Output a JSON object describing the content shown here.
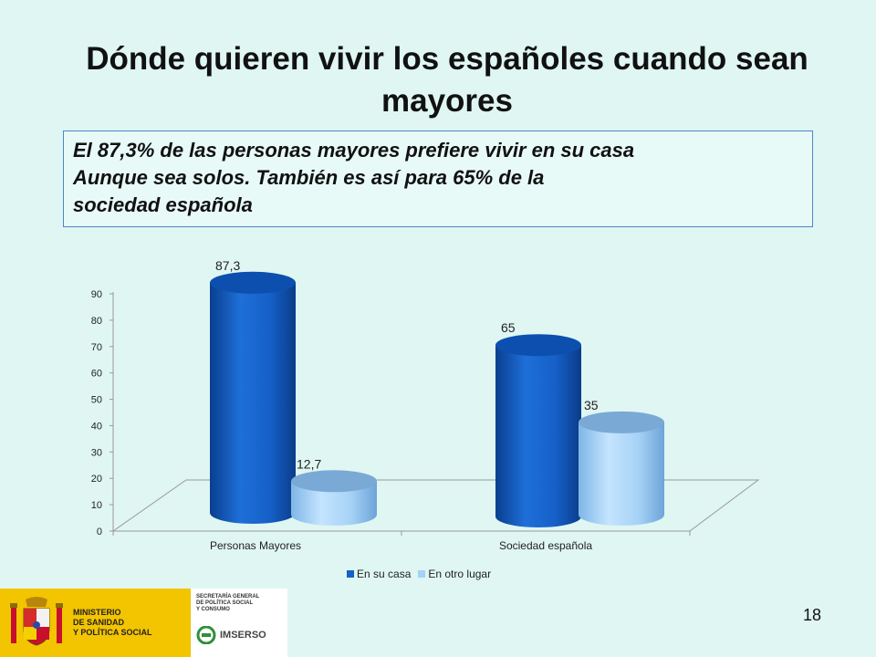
{
  "slide": {
    "title": "Dónde quieren vivir los españoles cuando sean mayores",
    "subtitle_lines": [
      "El 87,3%  de las personas mayores prefiere vivir  en su casa",
      "Aunque sea solos. También es así  para 65% de la",
      "sociedad española"
    ],
    "page_number": "18"
  },
  "footer": {
    "ministry_lines": [
      "MINISTERIO",
      "DE SANIDAD",
      "Y POLÍTICA SOCIAL"
    ],
    "secretaria_lines": [
      "SECRETARÍA GENERAL",
      "DE POLÍTICA SOCIAL",
      "Y CONSUMO"
    ],
    "imserso": "IMSERSO"
  },
  "chart_data": {
    "type": "bar",
    "categories": [
      "Personas Mayores",
      "Sociedad española"
    ],
    "series": [
      {
        "name": "En su casa",
        "values": [
          87.3,
          65
        ],
        "labels": [
          "87,3",
          "65"
        ],
        "color": "#1560c8"
      },
      {
        "name": "En otro lugar",
        "values": [
          12.7,
          35
        ],
        "labels": [
          "12,7",
          "35"
        ],
        "color": "#a6d2f6"
      }
    ],
    "ylim": [
      0,
      90
    ],
    "yticks": [
      0,
      10,
      20,
      30,
      40,
      50,
      60,
      70,
      80,
      90
    ],
    "legend": "bottom",
    "style": "3d-cylinder"
  }
}
